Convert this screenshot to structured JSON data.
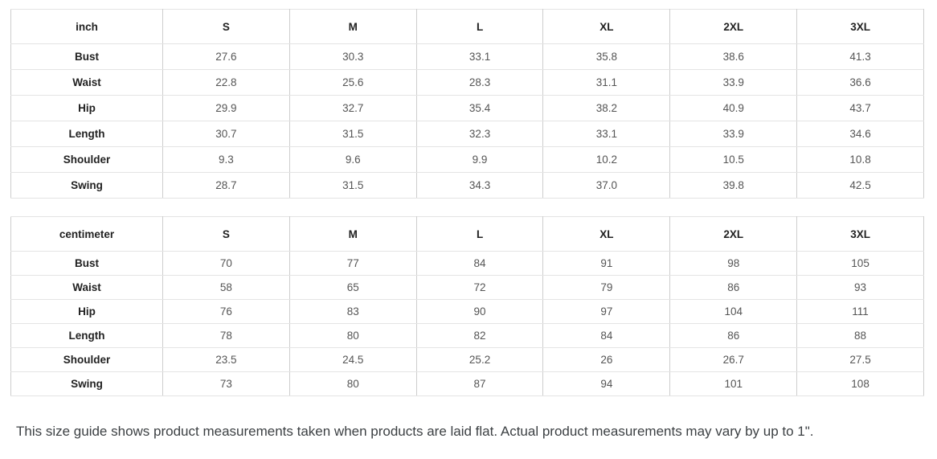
{
  "chart_data": [
    {
      "type": "table",
      "title": "inch size guide",
      "unit_label": "inch",
      "columns": [
        "inch",
        "S",
        "M",
        "L",
        "XL",
        "2XL",
        "3XL"
      ],
      "rows": [
        [
          "Bust",
          "27.6",
          "30.3",
          "33.1",
          "35.8",
          "38.6",
          "41.3"
        ],
        [
          "Waist",
          "22.8",
          "25.6",
          "28.3",
          "31.1",
          "33.9",
          "36.6"
        ],
        [
          "Hip",
          "29.9",
          "32.7",
          "35.4",
          "38.2",
          "40.9",
          "43.7"
        ],
        [
          "Length",
          "30.7",
          "31.5",
          "32.3",
          "33.1",
          "33.9",
          "34.6"
        ],
        [
          "Shoulder",
          "9.3",
          "9.6",
          "9.9",
          "10.2",
          "10.5",
          "10.8"
        ],
        [
          "Swing",
          "28.7",
          "31.5",
          "34.3",
          "37.0",
          "39.8",
          "42.5"
        ]
      ]
    },
    {
      "type": "table",
      "title": "centimeter size guide",
      "unit_label": "centimeter",
      "columns": [
        "centimeter",
        "S",
        "M",
        "L",
        "XL",
        "2XL",
        "3XL"
      ],
      "rows": [
        [
          "Bust",
          "70",
          "77",
          "84",
          "91",
          "98",
          "105"
        ],
        [
          "Waist",
          "58",
          "65",
          "72",
          "79",
          "86",
          "93"
        ],
        [
          "Hip",
          "76",
          "83",
          "90",
          "97",
          "104",
          "111"
        ],
        [
          "Length",
          "78",
          "80",
          "82",
          "84",
          "86",
          "88"
        ],
        [
          "Shoulder",
          "23.5",
          "24.5",
          "25.2",
          "26",
          "26.7",
          "27.5"
        ],
        [
          "Swing",
          "73",
          "80",
          "87",
          "94",
          "101",
          "108"
        ]
      ]
    }
  ],
  "footer": {
    "note": "This size guide shows product measurements taken when products are laid flat. Actual product measurements may vary by up to 1\"."
  },
  "colors": {
    "table_outer_border": "#c9c9c9",
    "table_vertical_border": "#cdcdcd",
    "table_horizontal_border": "#e4e4e4",
    "header_text": "#222222",
    "value_text": "#555555",
    "note_text": "#3c4043",
    "background": "#ffffff"
  }
}
